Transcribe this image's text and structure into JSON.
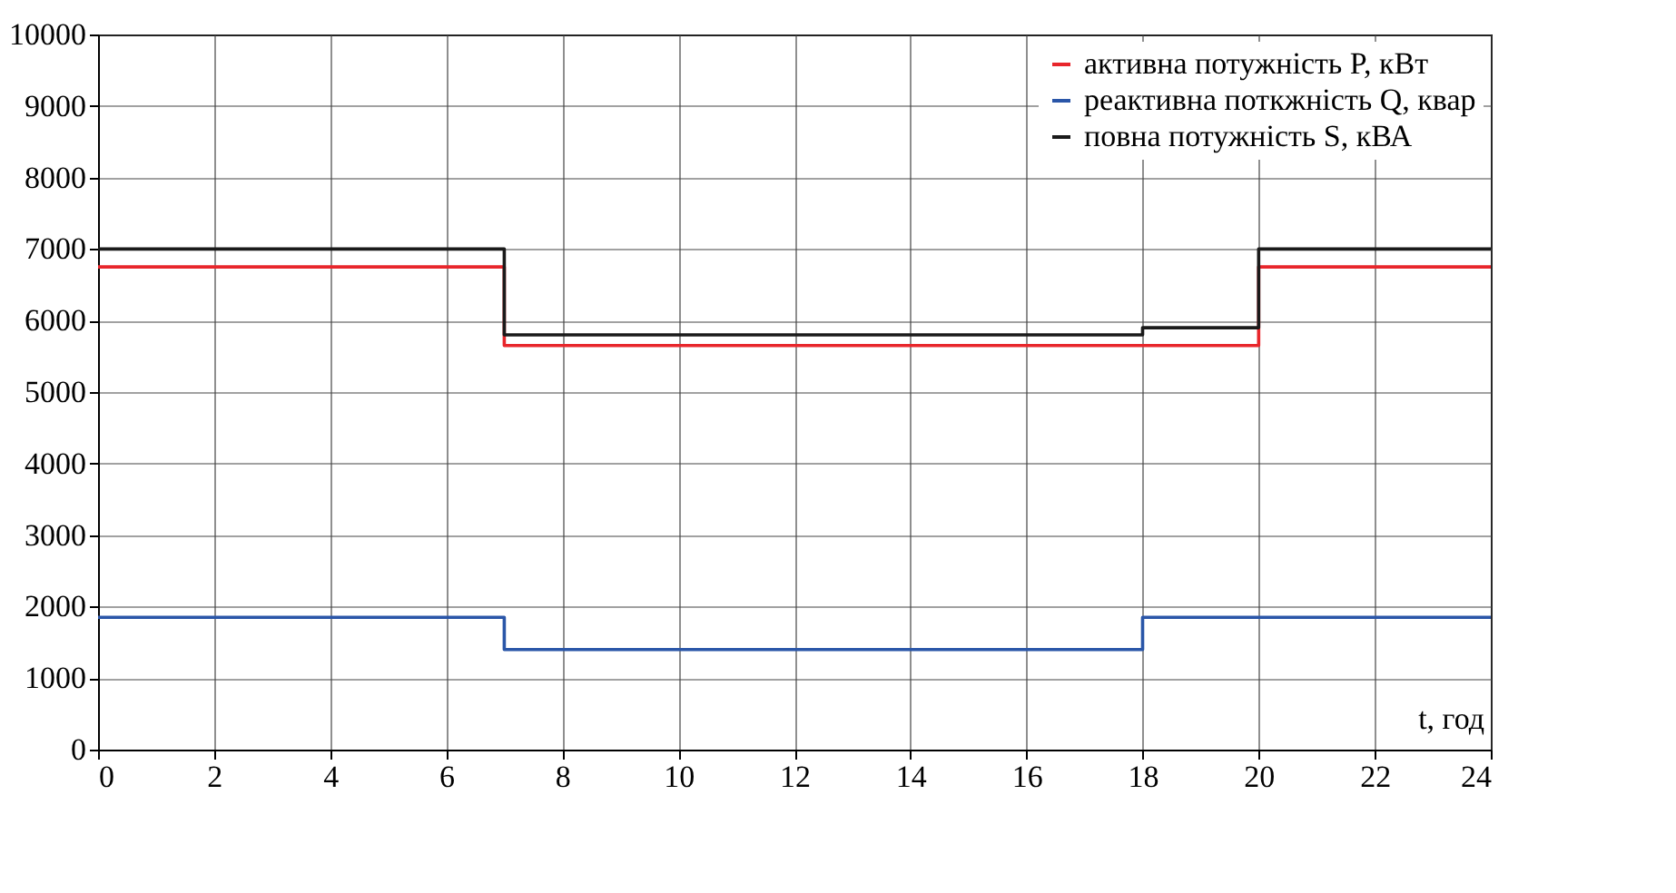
{
  "chart_data": {
    "type": "step",
    "xlabel": "t, год",
    "xlim": [
      0,
      24
    ],
    "xticks": [
      0,
      2,
      4,
      6,
      8,
      10,
      12,
      14,
      16,
      18,
      20,
      22,
      24
    ],
    "ylim": [
      0,
      10000
    ],
    "yticks": [
      0,
      1000,
      2000,
      3000,
      4000,
      5000,
      6000,
      7000,
      8000,
      9000,
      10000
    ],
    "grid": true,
    "legend": "top right",
    "line_style": "solid",
    "marker": "none",
    "series": [
      {
        "name": "активна потужність P, кВт",
        "color": "#e8262b",
        "x": [
          0,
          7,
          20,
          24
        ],
        "values": [
          6750,
          5650,
          6750,
          6750
        ]
      },
      {
        "name": "реактивна поткжність Q, квар",
        "color": "#2a56a8",
        "x": [
          0,
          7,
          18,
          24
        ],
        "values": [
          1850,
          1400,
          1850,
          1850
        ]
      },
      {
        "name": "повна потужність S, кВА",
        "color": "#1a1a1a",
        "x": [
          0,
          7,
          18,
          20,
          24
        ],
        "values": [
          7000,
          5800,
          5900,
          7000,
          7000
        ]
      }
    ]
  }
}
